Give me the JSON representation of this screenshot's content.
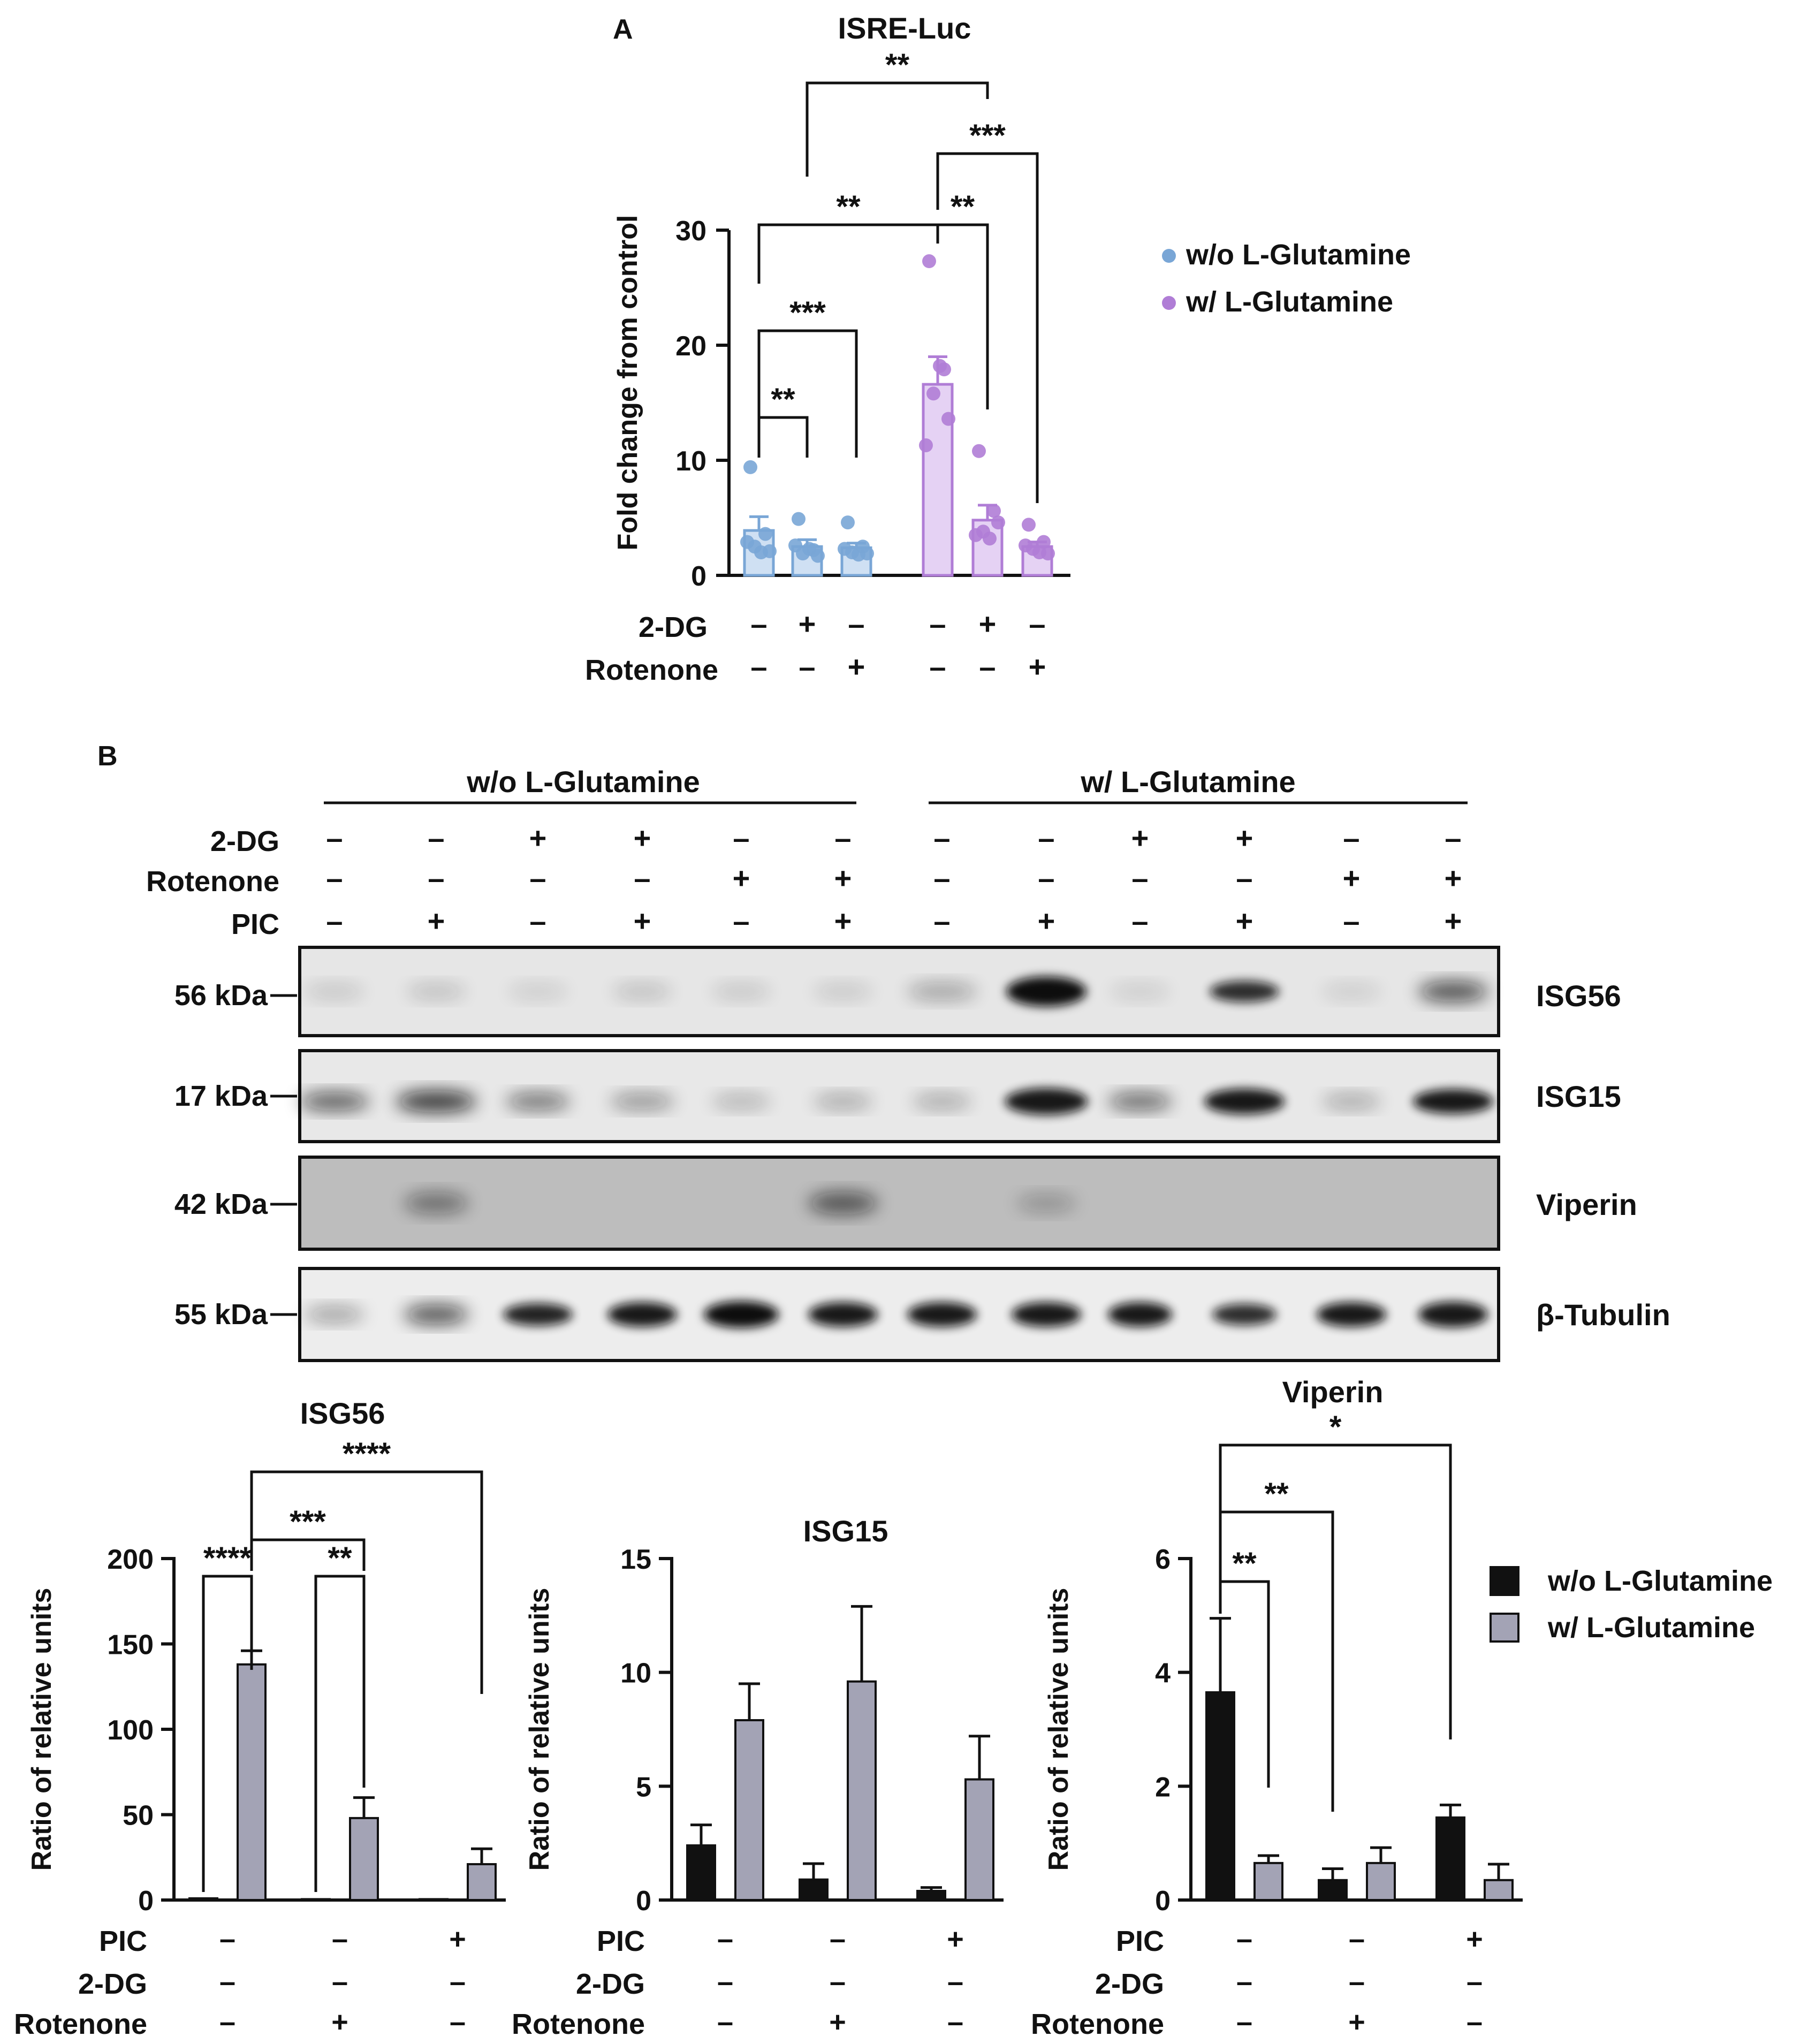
{
  "panel_a": {
    "letter": "A",
    "title": "ISRE-Luc",
    "ylabel": "Fold change from control",
    "y_ticks": [
      "0",
      "10",
      "20",
      "30"
    ],
    "legend": [
      "w/o L-Glutamine",
      "w/ L-Glutamine"
    ],
    "row_labels": [
      "2-DG",
      "Rotenone"
    ],
    "rows": [
      [
        "–",
        "+",
        "–",
        "–",
        "+",
        "–"
      ],
      [
        "–",
        "–",
        "+",
        "–",
        "–",
        "+"
      ]
    ],
    "sig": [
      "**",
      "***",
      "**",
      "**",
      "***",
      "**"
    ]
  },
  "panel_b": {
    "letter": "B",
    "group_labels": [
      "w/o L-Glutamine",
      "w/ L-Glutamine"
    ],
    "row_labels": [
      "2-DG",
      "Rotenone",
      "PIC"
    ],
    "rows": [
      [
        "–",
        "–",
        "+",
        "+",
        "–",
        "–",
        "–",
        "–",
        "+",
        "+",
        "–",
        "–"
      ],
      [
        "–",
        "–",
        "–",
        "–",
        "+",
        "+",
        "–",
        "–",
        "–",
        "–",
        "+",
        "+"
      ],
      [
        "–",
        "+",
        "–",
        "+",
        "–",
        "+",
        "–",
        "+",
        "–",
        "+",
        "–",
        "+"
      ]
    ],
    "blots": [
      {
        "kda": "56 kDa",
        "protein": "ISG56"
      },
      {
        "kda": "17 kDa",
        "protein": "ISG15"
      },
      {
        "kda": "42 kDa",
        "protein": "Viperin"
      },
      {
        "kda": "55 kDa",
        "protein": "β-Tubulin"
      }
    ]
  },
  "quant": {
    "ylabel": "Ratio of relative units",
    "row_labels": [
      "PIC",
      "2-DG",
      "Rotenone"
    ],
    "rows": [
      [
        "–",
        "–",
        "+"
      ],
      [
        "–",
        "–",
        "–"
      ],
      [
        "–",
        "+",
        "–"
      ]
    ],
    "legend": [
      "w/o L-Glutamine",
      "w/ L-Glutamine"
    ],
    "isg56": {
      "title": "ISG56",
      "y_ticks": [
        "0",
        "50",
        "100",
        "150",
        "200"
      ],
      "sig": [
        "****",
        "**",
        "***",
        "****"
      ]
    },
    "isg15": {
      "title": "ISG15",
      "y_ticks": [
        "0",
        "5",
        "10",
        "15"
      ]
    },
    "viperin": {
      "title": "Viperin",
      "y_ticks": [
        "0",
        "2",
        "4",
        "6"
      ],
      "sig": [
        "**",
        "**",
        "*"
      ]
    }
  },
  "chart_data": [
    {
      "type": "bar",
      "title": "ISRE-Luc",
      "ylabel": "Fold change from control",
      "ylim": [
        0,
        30
      ],
      "series": [
        {
          "name": "w/o L-Glutamine",
          "color": "#79a6d6",
          "values": [
            3.9,
            2.5,
            2.4
          ],
          "errors": [
            1.2,
            0.6,
            0.4
          ],
          "points": [
            [
              9.4,
              3.6,
              2.5,
              2.1,
              2.9,
              2.0
            ],
            [
              4.9,
              2.2,
              1.9,
              1.7,
              2.6,
              2.3
            ],
            [
              4.6,
              2.5,
              2.0,
              1.9,
              2.3,
              1.8
            ]
          ]
        },
        {
          "name": "w/ L-Glutamine",
          "color": "#b07dd6",
          "values": [
            16.6,
            4.8,
            2.5
          ],
          "errors": [
            2.4,
            1.3,
            0.4
          ],
          "points": [
            [
              27.3,
              17.9,
              15.8,
              13.6,
              11.3,
              18.2
            ],
            [
              10.8,
              5.6,
              3.8,
              4.6,
              3.5,
              3.2
            ],
            [
              4.4,
              2.9,
              2.3,
              1.9,
              2.6,
              2.0
            ]
          ]
        }
      ]
    },
    {
      "type": "bar",
      "title": "ISG56",
      "ylabel": "Ratio of relative units",
      "ylim": [
        0,
        200
      ],
      "series": [
        {
          "name": "w/o L-Glutamine",
          "color": "#111111",
          "values": [
            1,
            0.5,
            0.5
          ],
          "errors": [
            0,
            0,
            0
          ]
        },
        {
          "name": "w/ L-Glutamine",
          "color": "#a3a3b5",
          "values": [
            138,
            48,
            21
          ],
          "errors": [
            8,
            12,
            9
          ]
        }
      ]
    },
    {
      "type": "bar",
      "title": "ISG15",
      "ylabel": "Ratio of relative units",
      "ylim": [
        0,
        15
      ],
      "series": [
        {
          "name": "w/o L-Glutamine",
          "color": "#111111",
          "values": [
            2.4,
            0.9,
            0.4
          ],
          "errors": [
            0.9,
            0.7,
            0.15
          ]
        },
        {
          "name": "w/ L-Glutamine",
          "color": "#a3a3b5",
          "values": [
            7.9,
            9.6,
            5.3
          ],
          "errors": [
            1.6,
            3.3,
            1.9
          ]
        }
      ]
    },
    {
      "type": "bar",
      "title": "Viperin",
      "ylabel": "Ratio of relative units",
      "ylim": [
        0,
        6
      ],
      "series": [
        {
          "name": "w/o L-Glutamine",
          "color": "#111111",
          "values": [
            3.65,
            0.35,
            1.45
          ],
          "errors": [
            1.3,
            0.2,
            0.22
          ]
        },
        {
          "name": "w/ L-Glutamine",
          "color": "#a3a3b5",
          "values": [
            0.65,
            0.65,
            0.35
          ],
          "errors": [
            0.13,
            0.27,
            0.28
          ]
        }
      ]
    }
  ]
}
